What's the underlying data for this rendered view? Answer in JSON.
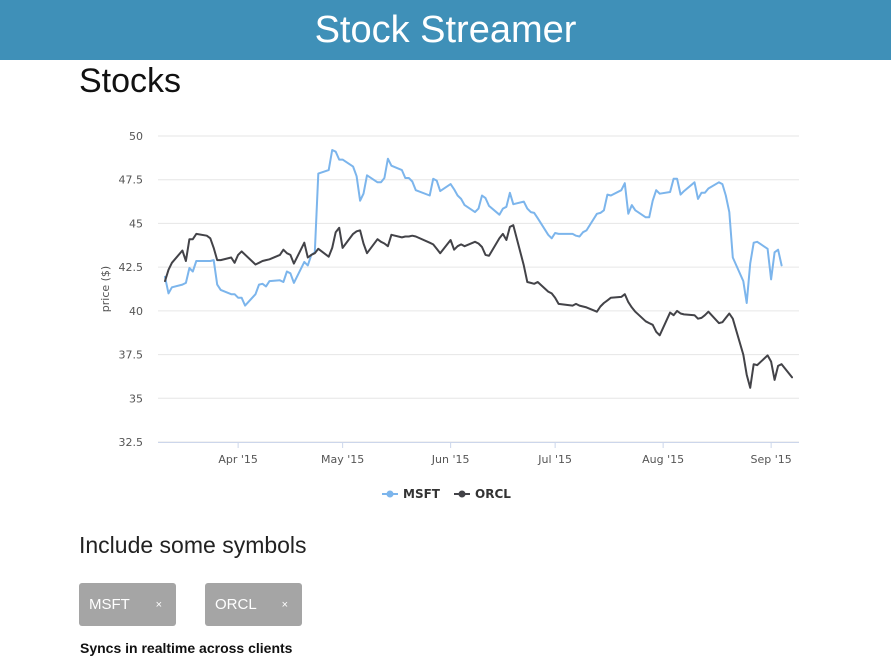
{
  "header": {
    "title": "Stock Streamer"
  },
  "section": {
    "title": "Stocks"
  },
  "colors": {
    "header_bg": "#3f90b8",
    "msft": "#7cb5ec",
    "orcl": "#434348",
    "chip_bg": "#a5a5a5"
  },
  "chart_data": {
    "type": "line",
    "title": "",
    "xlabel": "",
    "ylabel": "price ($)",
    "ylim": [
      32.5,
      50
    ],
    "yticks": [
      "32.5",
      "35",
      "37.5",
      "40",
      "42.5",
      "45",
      "47.5",
      "50"
    ],
    "xlim": [
      "2015-03-09",
      "2015-09-09"
    ],
    "xticks": [
      {
        "date": "2015-04-01",
        "label": "Apr '15"
      },
      {
        "date": "2015-05-01",
        "label": "May '15"
      },
      {
        "date": "2015-06-01",
        "label": "Jun '15"
      },
      {
        "date": "2015-07-01",
        "label": "Jul '15"
      },
      {
        "date": "2015-08-01",
        "label": "Aug '15"
      },
      {
        "date": "2015-09-01",
        "label": "Sep '15"
      }
    ],
    "grid": true,
    "legend": "bottom-center",
    "series": [
      {
        "name": "MSFT",
        "color": "#7cb5ec",
        "points": [
          [
            "2015-03-11",
            41.95
          ],
          [
            "2015-03-12",
            41.0
          ],
          [
            "2015-03-13",
            41.35
          ],
          [
            "2015-03-16",
            41.5
          ],
          [
            "2015-03-17",
            41.6
          ],
          [
            "2015-03-18",
            42.45
          ],
          [
            "2015-03-19",
            42.25
          ],
          [
            "2015-03-20",
            42.85
          ],
          [
            "2015-03-23",
            42.85
          ],
          [
            "2015-03-24",
            42.85
          ],
          [
            "2015-03-25",
            42.9
          ],
          [
            "2015-03-26",
            41.5
          ],
          [
            "2015-03-27",
            41.2
          ],
          [
            "2015-03-30",
            40.95
          ],
          [
            "2015-03-31",
            40.95
          ],
          [
            "2015-04-01",
            40.75
          ],
          [
            "2015-04-02",
            40.75
          ],
          [
            "2015-04-03",
            40.3
          ],
          [
            "2015-04-06",
            40.95
          ],
          [
            "2015-04-07",
            41.5
          ],
          [
            "2015-04-08",
            41.55
          ],
          [
            "2015-04-09",
            41.4
          ],
          [
            "2015-04-10",
            41.7
          ],
          [
            "2015-04-13",
            41.75
          ],
          [
            "2015-04-14",
            41.65
          ],
          [
            "2015-04-15",
            42.25
          ],
          [
            "2015-04-16",
            42.15
          ],
          [
            "2015-04-17",
            41.6
          ],
          [
            "2015-04-20",
            42.8
          ],
          [
            "2015-04-21",
            42.6
          ],
          [
            "2015-04-22",
            43.2
          ],
          [
            "2015-04-23",
            43.35
          ],
          [
            "2015-04-24",
            47.85
          ],
          [
            "2015-04-27",
            48.05
          ],
          [
            "2015-04-28",
            49.2
          ],
          [
            "2015-04-29",
            49.1
          ],
          [
            "2015-04-30",
            48.65
          ],
          [
            "2015-05-01",
            48.65
          ],
          [
            "2015-05-04",
            48.25
          ],
          [
            "2015-05-05",
            47.7
          ],
          [
            "2015-05-06",
            46.3
          ],
          [
            "2015-05-07",
            46.7
          ],
          [
            "2015-05-08",
            47.75
          ],
          [
            "2015-05-11",
            47.35
          ],
          [
            "2015-05-12",
            47.35
          ],
          [
            "2015-05-13",
            47.6
          ],
          [
            "2015-05-14",
            48.7
          ],
          [
            "2015-05-15",
            48.3
          ],
          [
            "2015-05-18",
            48.05
          ],
          [
            "2015-05-19",
            47.6
          ],
          [
            "2015-05-20",
            47.6
          ],
          [
            "2015-05-21",
            47.4
          ],
          [
            "2015-05-22",
            46.9
          ],
          [
            "2015-05-26",
            46.6
          ],
          [
            "2015-05-27",
            47.55
          ],
          [
            "2015-05-28",
            47.45
          ],
          [
            "2015-05-29",
            46.85
          ],
          [
            "2015-06-01",
            47.25
          ],
          [
            "2015-06-02",
            46.95
          ],
          [
            "2015-06-03",
            46.6
          ],
          [
            "2015-06-04",
            46.4
          ],
          [
            "2015-06-05",
            46.05
          ],
          [
            "2015-06-08",
            45.65
          ],
          [
            "2015-06-09",
            45.85
          ],
          [
            "2015-06-10",
            46.6
          ],
          [
            "2015-06-11",
            46.45
          ],
          [
            "2015-06-12",
            46.0
          ],
          [
            "2015-06-15",
            45.5
          ],
          [
            "2015-06-16",
            45.85
          ],
          [
            "2015-06-17",
            45.95
          ],
          [
            "2015-06-18",
            46.75
          ],
          [
            "2015-06-19",
            46.1
          ],
          [
            "2015-06-22",
            46.25
          ],
          [
            "2015-06-23",
            45.85
          ],
          [
            "2015-06-24",
            45.65
          ],
          [
            "2015-06-25",
            45.6
          ],
          [
            "2015-06-26",
            45.3
          ],
          [
            "2015-06-29",
            44.35
          ],
          [
            "2015-06-30",
            44.15
          ],
          [
            "2015-07-01",
            44.45
          ],
          [
            "2015-07-02",
            44.4
          ],
          [
            "2015-07-06",
            44.4
          ],
          [
            "2015-07-07",
            44.3
          ],
          [
            "2015-07-08",
            44.25
          ],
          [
            "2015-07-09",
            44.5
          ],
          [
            "2015-07-10",
            44.6
          ],
          [
            "2015-07-13",
            45.55
          ],
          [
            "2015-07-14",
            45.6
          ],
          [
            "2015-07-15",
            45.75
          ],
          [
            "2015-07-16",
            46.65
          ],
          [
            "2015-07-17",
            46.6
          ],
          [
            "2015-07-20",
            46.9
          ],
          [
            "2015-07-21",
            47.3
          ],
          [
            "2015-07-22",
            45.55
          ],
          [
            "2015-07-23",
            46.05
          ],
          [
            "2015-07-24",
            45.75
          ],
          [
            "2015-07-27",
            45.35
          ],
          [
            "2015-07-28",
            45.35
          ],
          [
            "2015-07-29",
            46.3
          ],
          [
            "2015-07-30",
            46.9
          ],
          [
            "2015-07-31",
            46.7
          ],
          [
            "2015-08-03",
            46.8
          ],
          [
            "2015-08-04",
            47.55
          ],
          [
            "2015-08-05",
            47.55
          ],
          [
            "2015-08-06",
            46.65
          ],
          [
            "2015-08-07",
            46.85
          ],
          [
            "2015-08-10",
            47.35
          ],
          [
            "2015-08-11",
            46.4
          ],
          [
            "2015-08-12",
            46.75
          ],
          [
            "2015-08-13",
            46.75
          ],
          [
            "2015-08-14",
            47.0
          ],
          [
            "2015-08-17",
            47.35
          ],
          [
            "2015-08-18",
            47.25
          ],
          [
            "2015-08-19",
            46.6
          ],
          [
            "2015-08-20",
            45.65
          ],
          [
            "2015-08-21",
            43.05
          ],
          [
            "2015-08-24",
            41.7
          ],
          [
            "2015-08-25",
            40.45
          ],
          [
            "2015-08-26",
            42.7
          ],
          [
            "2015-08-27",
            43.9
          ],
          [
            "2015-08-28",
            43.95
          ],
          [
            "2015-08-31",
            43.55
          ],
          [
            "2015-09-01",
            41.8
          ],
          [
            "2015-09-02",
            43.35
          ],
          [
            "2015-09-03",
            43.5
          ],
          [
            "2015-09-04",
            42.6
          ]
        ]
      },
      {
        "name": "ORCL",
        "color": "#434348",
        "points": [
          [
            "2015-03-11",
            41.7
          ],
          [
            "2015-03-12",
            42.35
          ],
          [
            "2015-03-13",
            42.75
          ],
          [
            "2015-03-16",
            43.45
          ],
          [
            "2015-03-17",
            42.85
          ],
          [
            "2015-03-18",
            44.1
          ],
          [
            "2015-03-19",
            44.1
          ],
          [
            "2015-03-20",
            44.4
          ],
          [
            "2015-03-23",
            44.3
          ],
          [
            "2015-03-24",
            44.15
          ],
          [
            "2015-03-25",
            43.6
          ],
          [
            "2015-03-26",
            42.9
          ],
          [
            "2015-03-27",
            42.9
          ],
          [
            "2015-03-30",
            43.05
          ],
          [
            "2015-03-31",
            42.75
          ],
          [
            "2015-04-01",
            43.2
          ],
          [
            "2015-04-02",
            43.4
          ],
          [
            "2015-04-06",
            42.65
          ],
          [
            "2015-04-07",
            42.75
          ],
          [
            "2015-04-08",
            42.85
          ],
          [
            "2015-04-09",
            42.9
          ],
          [
            "2015-04-10",
            42.95
          ],
          [
            "2015-04-13",
            43.2
          ],
          [
            "2015-04-14",
            43.5
          ],
          [
            "2015-04-15",
            43.3
          ],
          [
            "2015-04-16",
            43.2
          ],
          [
            "2015-04-17",
            42.7
          ],
          [
            "2015-04-20",
            43.9
          ],
          [
            "2015-04-21",
            43.05
          ],
          [
            "2015-04-22",
            43.2
          ],
          [
            "2015-04-23",
            43.3
          ],
          [
            "2015-04-24",
            43.55
          ],
          [
            "2015-04-27",
            43.1
          ],
          [
            "2015-04-28",
            43.6
          ],
          [
            "2015-04-29",
            44.5
          ],
          [
            "2015-04-30",
            44.75
          ],
          [
            "2015-05-01",
            43.6
          ],
          [
            "2015-05-04",
            44.4
          ],
          [
            "2015-05-05",
            44.55
          ],
          [
            "2015-05-06",
            44.6
          ],
          [
            "2015-05-07",
            43.85
          ],
          [
            "2015-05-08",
            43.3
          ],
          [
            "2015-05-11",
            44.1
          ],
          [
            "2015-05-12",
            43.95
          ],
          [
            "2015-05-13",
            43.85
          ],
          [
            "2015-05-14",
            43.7
          ],
          [
            "2015-05-15",
            44.35
          ],
          [
            "2015-05-18",
            44.2
          ],
          [
            "2015-05-19",
            44.25
          ],
          [
            "2015-05-20",
            44.25
          ],
          [
            "2015-05-21",
            44.3
          ],
          [
            "2015-05-22",
            44.25
          ],
          [
            "2015-05-26",
            43.9
          ],
          [
            "2015-05-27",
            43.8
          ],
          [
            "2015-05-28",
            43.55
          ],
          [
            "2015-05-29",
            43.3
          ],
          [
            "2015-06-01",
            44.05
          ],
          [
            "2015-06-02",
            43.5
          ],
          [
            "2015-06-03",
            43.7
          ],
          [
            "2015-06-04",
            43.8
          ],
          [
            "2015-06-05",
            43.7
          ],
          [
            "2015-06-08",
            43.95
          ],
          [
            "2015-06-09",
            43.85
          ],
          [
            "2015-06-10",
            43.65
          ],
          [
            "2015-06-11",
            43.2
          ],
          [
            "2015-06-12",
            43.15
          ],
          [
            "2015-06-15",
            44.15
          ],
          [
            "2015-06-16",
            44.4
          ],
          [
            "2015-06-17",
            44.05
          ],
          [
            "2015-06-18",
            44.8
          ],
          [
            "2015-06-19",
            44.9
          ],
          [
            "2015-06-22",
            42.6
          ],
          [
            "2015-06-23",
            41.65
          ],
          [
            "2015-06-24",
            41.6
          ],
          [
            "2015-06-25",
            41.55
          ],
          [
            "2015-06-26",
            41.65
          ],
          [
            "2015-06-29",
            41.1
          ],
          [
            "2015-06-30",
            41.0
          ],
          [
            "2015-07-01",
            40.75
          ],
          [
            "2015-07-02",
            40.4
          ],
          [
            "2015-07-06",
            40.3
          ],
          [
            "2015-07-07",
            40.4
          ],
          [
            "2015-07-08",
            40.3
          ],
          [
            "2015-07-09",
            40.25
          ],
          [
            "2015-07-10",
            40.2
          ],
          [
            "2015-07-13",
            39.95
          ],
          [
            "2015-07-14",
            40.25
          ],
          [
            "2015-07-15",
            40.45
          ],
          [
            "2015-07-16",
            40.6
          ],
          [
            "2015-07-17",
            40.75
          ],
          [
            "2015-07-20",
            40.8
          ],
          [
            "2015-07-21",
            40.95
          ],
          [
            "2015-07-22",
            40.5
          ],
          [
            "2015-07-23",
            40.2
          ],
          [
            "2015-07-24",
            39.95
          ],
          [
            "2015-07-27",
            39.4
          ],
          [
            "2015-07-28",
            39.3
          ],
          [
            "2015-07-29",
            39.2
          ],
          [
            "2015-07-30",
            38.8
          ],
          [
            "2015-07-31",
            38.6
          ],
          [
            "2015-08-03",
            39.9
          ],
          [
            "2015-08-04",
            39.75
          ],
          [
            "2015-08-05",
            40.0
          ],
          [
            "2015-08-06",
            39.85
          ],
          [
            "2015-08-07",
            39.8
          ],
          [
            "2015-08-10",
            39.75
          ],
          [
            "2015-08-11",
            39.55
          ],
          [
            "2015-08-12",
            39.6
          ],
          [
            "2015-08-13",
            39.75
          ],
          [
            "2015-08-14",
            39.95
          ],
          [
            "2015-08-17",
            39.3
          ],
          [
            "2015-08-18",
            39.35
          ],
          [
            "2015-08-19",
            39.6
          ],
          [
            "2015-08-20",
            39.85
          ],
          [
            "2015-08-21",
            39.55
          ],
          [
            "2015-08-24",
            37.5
          ],
          [
            "2015-08-25",
            36.35
          ],
          [
            "2015-08-26",
            35.6
          ],
          [
            "2015-08-27",
            36.95
          ],
          [
            "2015-08-28",
            36.9
          ],
          [
            "2015-08-31",
            37.45
          ],
          [
            "2015-09-01",
            37.1
          ],
          [
            "2015-09-02",
            36.05
          ],
          [
            "2015-09-03",
            36.85
          ],
          [
            "2015-09-04",
            36.95
          ],
          [
            "2015-09-07",
            36.2
          ]
        ]
      }
    ]
  },
  "symbols": {
    "heading": "Include some symbols",
    "chips": [
      {
        "label": "MSFT",
        "remove": "×"
      },
      {
        "label": "ORCL",
        "remove": "×"
      }
    ]
  },
  "footer": {
    "note": "Syncs in realtime across clients"
  }
}
